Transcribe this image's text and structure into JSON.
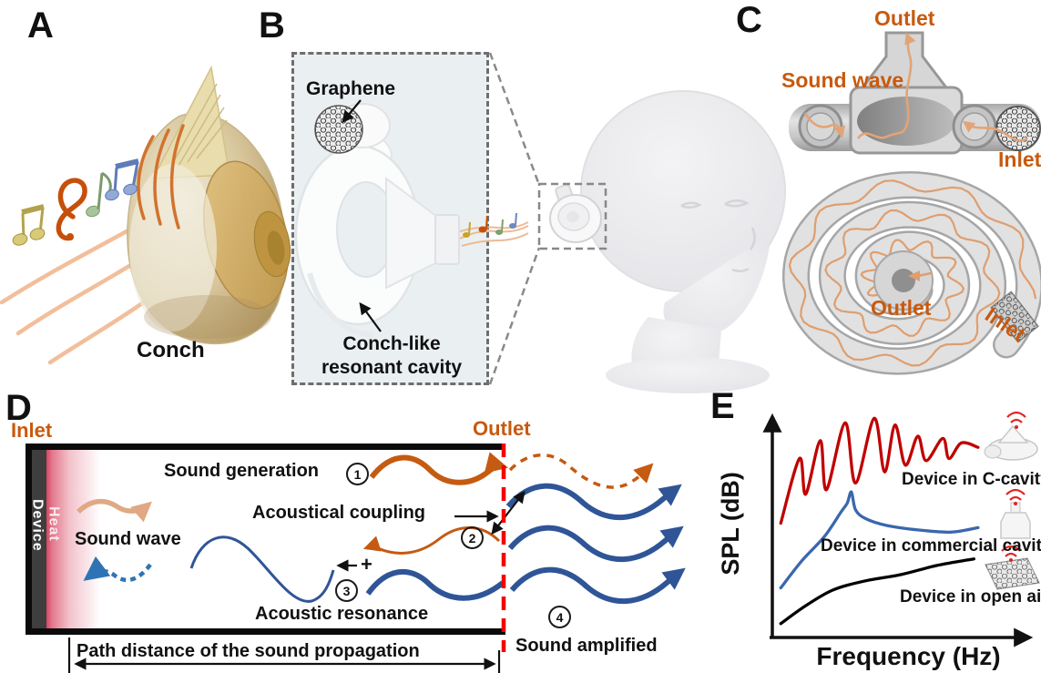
{
  "a": {
    "label": "A",
    "caption": "Conch"
  },
  "b": {
    "label": "B",
    "graphene": "Graphene",
    "cavity1": "Conch-like",
    "cavity2": "resonant cavity"
  },
  "c": {
    "label": "C",
    "outlet_top": "Outlet",
    "sound_wave": "Sound wave",
    "inlet_top": "Inlet",
    "outlet_spiral": "Outlet",
    "inlet_spiral": "Inlet"
  },
  "d": {
    "label": "D",
    "inlet": "Inlet",
    "outlet": "Outlet",
    "device": "Device",
    "heat": "Heat",
    "sound_generation": "Sound generation",
    "acoustical_coupling": "Acoustical coupling",
    "sound_wave": "Sound wave",
    "acoustic_resonance": "Acoustic resonance",
    "sound_amplified": "Sound amplified",
    "path_distance": "Path distance of the sound propagation",
    "plus": "+",
    "step1": "1",
    "step2": "2",
    "step3": "3",
    "step4": "4"
  },
  "e": {
    "label": "E",
    "ylabel": "SPL (dB)",
    "xlabel": "Frequency (Hz)",
    "legend1": "Device in C-cavity",
    "legend2": "Device in commercial cavity",
    "legend3": "Device in open air",
    "icons": [
      "conch-cavity-device-icon",
      "commercial-cavity-device-icon",
      "graphene-open-air-icon",
      "wifi-signal-icon"
    ]
  },
  "colors": {
    "label_orange": "#C8590E",
    "wave_orange": "#C55A11",
    "pale_orange": "#E2A477",
    "wave_blue": "#2F5597",
    "dotted_blue": "#2E74B5",
    "red_dashed_line": "#F40000",
    "heat_red": "#D64660",
    "device_gray": "#3E3E3E",
    "curve_red": "#C00000",
    "curve_blue": "#3A67AE",
    "curve_black": "#000000",
    "wifi_red": "#E02424"
  },
  "chart_data": {
    "type": "line",
    "xlabel": "Frequency (Hz)",
    "ylabel": "SPL (dB)",
    "axes_numeric_ticks": false,
    "x_normalized_range": [
      0,
      1
    ],
    "y_relative_range": [
      0,
      100
    ],
    "legend_position": "right",
    "series": [
      {
        "name": "Device in C-cavity",
        "color": "#C00000",
        "points": [
          [
            0.01,
            50
          ],
          [
            0.1,
            79
          ],
          [
            0.13,
            63
          ],
          [
            0.2,
            87
          ],
          [
            0.23,
            65
          ],
          [
            0.32,
            95
          ],
          [
            0.37,
            68
          ],
          [
            0.46,
            97
          ],
          [
            0.51,
            73
          ],
          [
            0.56,
            94
          ],
          [
            0.61,
            76
          ],
          [
            0.67,
            89
          ],
          [
            0.71,
            78
          ],
          [
            0.79,
            88
          ],
          [
            0.82,
            79
          ],
          [
            0.88,
            86
          ],
          [
            0.96,
            84
          ]
        ]
      },
      {
        "name": "Device in commercial cavity",
        "color": "#3A67AE",
        "points": [
          [
            0.01,
            21
          ],
          [
            0.11,
            33
          ],
          [
            0.22,
            44
          ],
          [
            0.3,
            55
          ],
          [
            0.33,
            59
          ],
          [
            0.35,
            64
          ],
          [
            0.37,
            56
          ],
          [
            0.42,
            52
          ],
          [
            0.52,
            49
          ],
          [
            0.67,
            47
          ],
          [
            0.83,
            46
          ],
          [
            0.96,
            48
          ]
        ]
      },
      {
        "name": "Device in open air",
        "color": "#000000",
        "points": [
          [
            0.01,
            5
          ],
          [
            0.13,
            13
          ],
          [
            0.26,
            20
          ],
          [
            0.41,
            24
          ],
          [
            0.59,
            27
          ],
          [
            0.76,
            31
          ],
          [
            0.94,
            34
          ]
        ]
      }
    ]
  }
}
